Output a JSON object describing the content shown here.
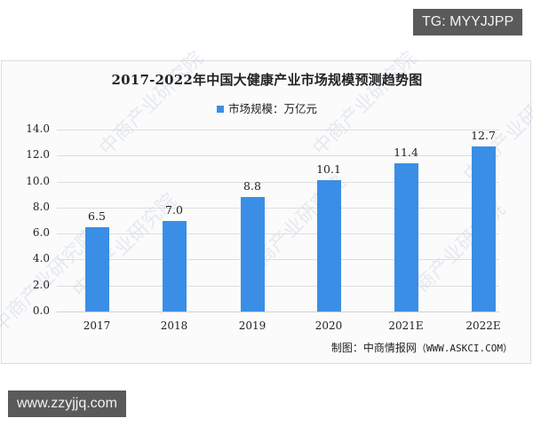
{
  "overlays": {
    "top_tag": "TG: MYYJJPP",
    "bottom_tag": "www.zzyjjq.com"
  },
  "watermark": "中商产业研究院",
  "chart_data": {
    "type": "bar",
    "title": "2017-2022年中国大健康产业市场规模预测趋势图",
    "legend": [
      {
        "name": "市场规模：万亿元",
        "color": "#3a8ee6"
      }
    ],
    "legend_position": "top",
    "categories": [
      "2017",
      "2018",
      "2019",
      "2020",
      "2021E",
      "2022E"
    ],
    "series": [
      {
        "name": "市场规模：万亿元",
        "values": [
          6.5,
          7.0,
          8.8,
          10.1,
          11.4,
          12.7
        ]
      }
    ],
    "value_labels": [
      "6.5",
      "7.0",
      "8.8",
      "10.1",
      "11.4",
      "12.7"
    ],
    "xlabel": "",
    "ylabel": "",
    "ylim": [
      0,
      14
    ],
    "yticks": [
      "0.0",
      "2.0",
      "4.0",
      "6.0",
      "8.0",
      "10.0",
      "12.0",
      "14.0"
    ],
    "grid": true,
    "source": "制图：中商情报网",
    "source_url": "（WWW.ASKCI.COM）"
  }
}
